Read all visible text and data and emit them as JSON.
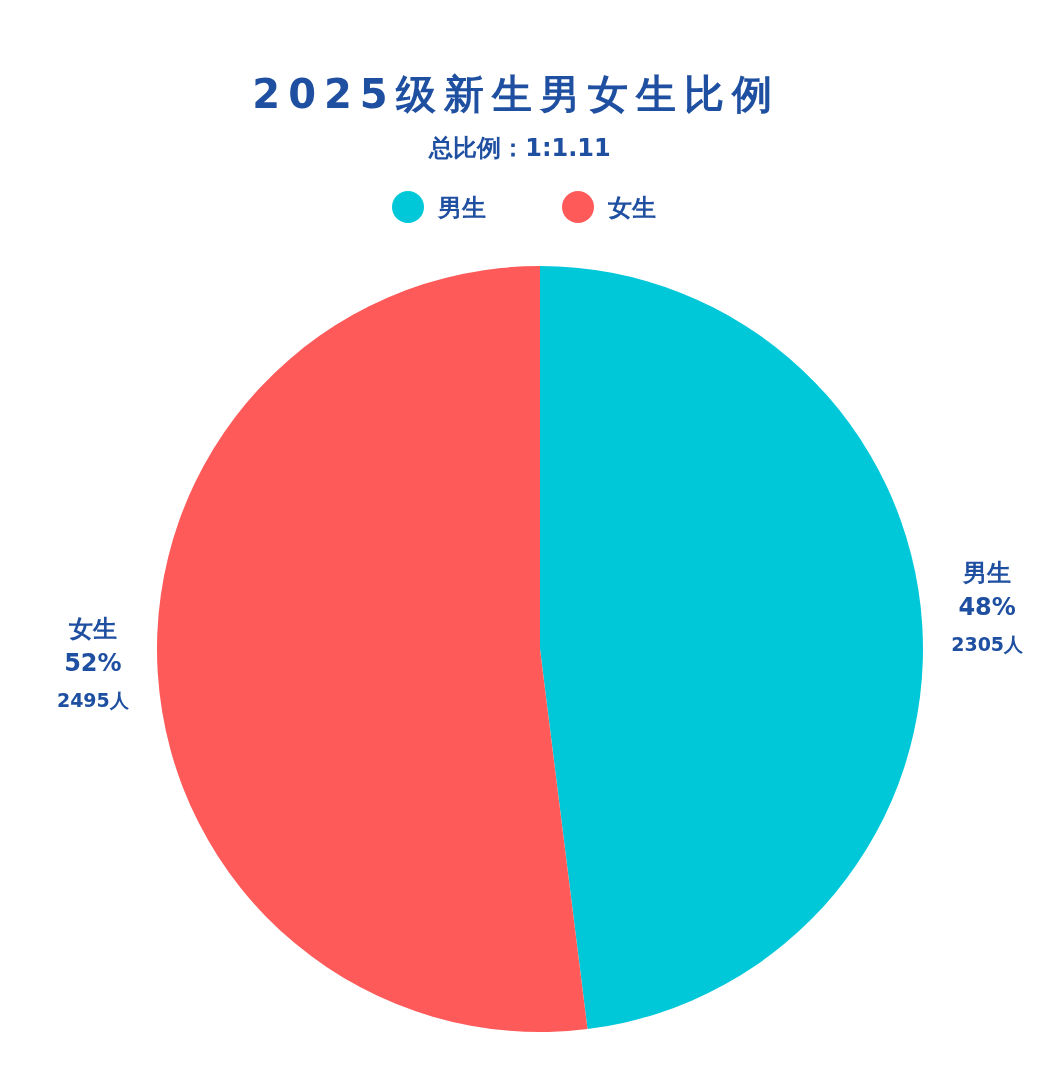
{
  "chart_data": {
    "type": "pie",
    "title": "2025级新生男女生比例",
    "subtitle": "总比例：1:1.11",
    "categories": [
      "男生",
      "女生"
    ],
    "values": [
      2305,
      2495
    ],
    "colors": [
      "#00c8d9",
      "#ff5a5a"
    ],
    "value_labels": [
      "48%\n2305人",
      "52%\n2495人"
    ],
    "legend": "top"
  }
}
